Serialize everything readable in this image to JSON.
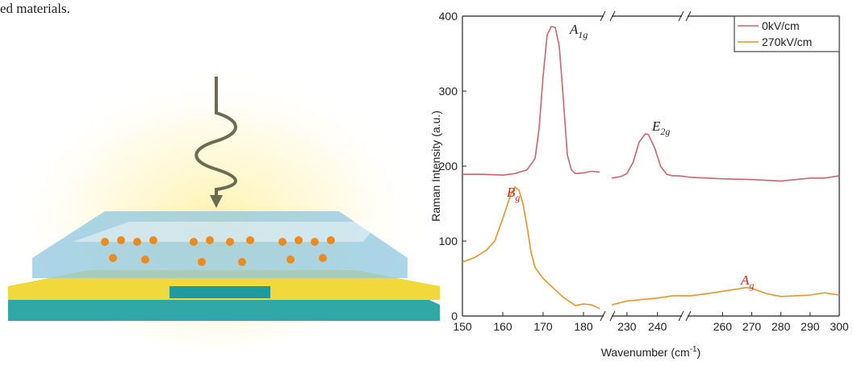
{
  "caption": "ed materials.",
  "chart_data": {
    "type": "line",
    "ylabel": "Raman Intensity (a.u.)",
    "xlabel": "Wavenumber (cm",
    "xlabel_sup": "-1",
    "xlabel_end": ")",
    "xlim": [
      150,
      300
    ],
    "x_segments": [
      [
        150,
        185
      ],
      [
        225,
        248
      ],
      [
        248,
        300
      ]
    ],
    "xticks": [
      150,
      160,
      170,
      180,
      230,
      240,
      260,
      270,
      280,
      290,
      300
    ],
    "ylim": [
      0,
      400
    ],
    "yticks": [
      0,
      100,
      200,
      300,
      400
    ],
    "grid": false,
    "legend": "upper right",
    "series": [
      {
        "name": "0kV/cm",
        "color": "#d0636b",
        "x": [
          150,
          155,
          160,
          163,
          166,
          168,
          169,
          170,
          171,
          172,
          173,
          174,
          175,
          176,
          177,
          178,
          180,
          182,
          184,
          200,
          225,
          228,
          230,
          232,
          234,
          236,
          237,
          239,
          241,
          243,
          245,
          247,
          249,
          255,
          260,
          270,
          280,
          290,
          295,
          300
        ],
        "values": [
          189,
          189,
          188,
          190,
          195,
          210,
          250,
          320,
          375,
          386,
          385,
          360,
          290,
          215,
          195,
          190,
          191,
          193,
          192,
          null,
          184,
          186,
          190,
          205,
          232,
          243,
          242,
          225,
          200,
          189,
          187,
          187,
          185,
          184,
          183,
          182,
          180,
          184,
          184,
          187
        ]
      },
      {
        "name": "270kV/cm",
        "color": "#f0921e",
        "x": [
          150,
          153,
          156,
          158,
          160,
          162,
          163,
          164,
          165,
          166,
          167,
          168,
          170,
          172,
          175,
          178,
          180,
          182,
          184,
          200,
          225,
          230,
          235,
          240,
          245,
          247,
          249,
          255,
          260,
          265,
          268,
          270,
          275,
          280,
          285,
          290,
          295,
          300
        ],
        "values": [
          72,
          78,
          88,
          100,
          130,
          162,
          172,
          168,
          150,
          120,
          85,
          65,
          50,
          40,
          25,
          14,
          16,
          15,
          10,
          null,
          15,
          20,
          22,
          24,
          27,
          27,
          27,
          30,
          33,
          36,
          38,
          37,
          30,
          26,
          27,
          28,
          31,
          28
        ]
      }
    ],
    "annotations": [
      {
        "text": "A",
        "sub": "1g",
        "color": "#222222"
      },
      {
        "text": "E",
        "sub": "2g",
        "color": "#222222"
      },
      {
        "text": "B",
        "sub": "g",
        "color": "#e8211c"
      },
      {
        "text": "A",
        "sub": "g",
        "color": "#e8211c"
      }
    ]
  }
}
